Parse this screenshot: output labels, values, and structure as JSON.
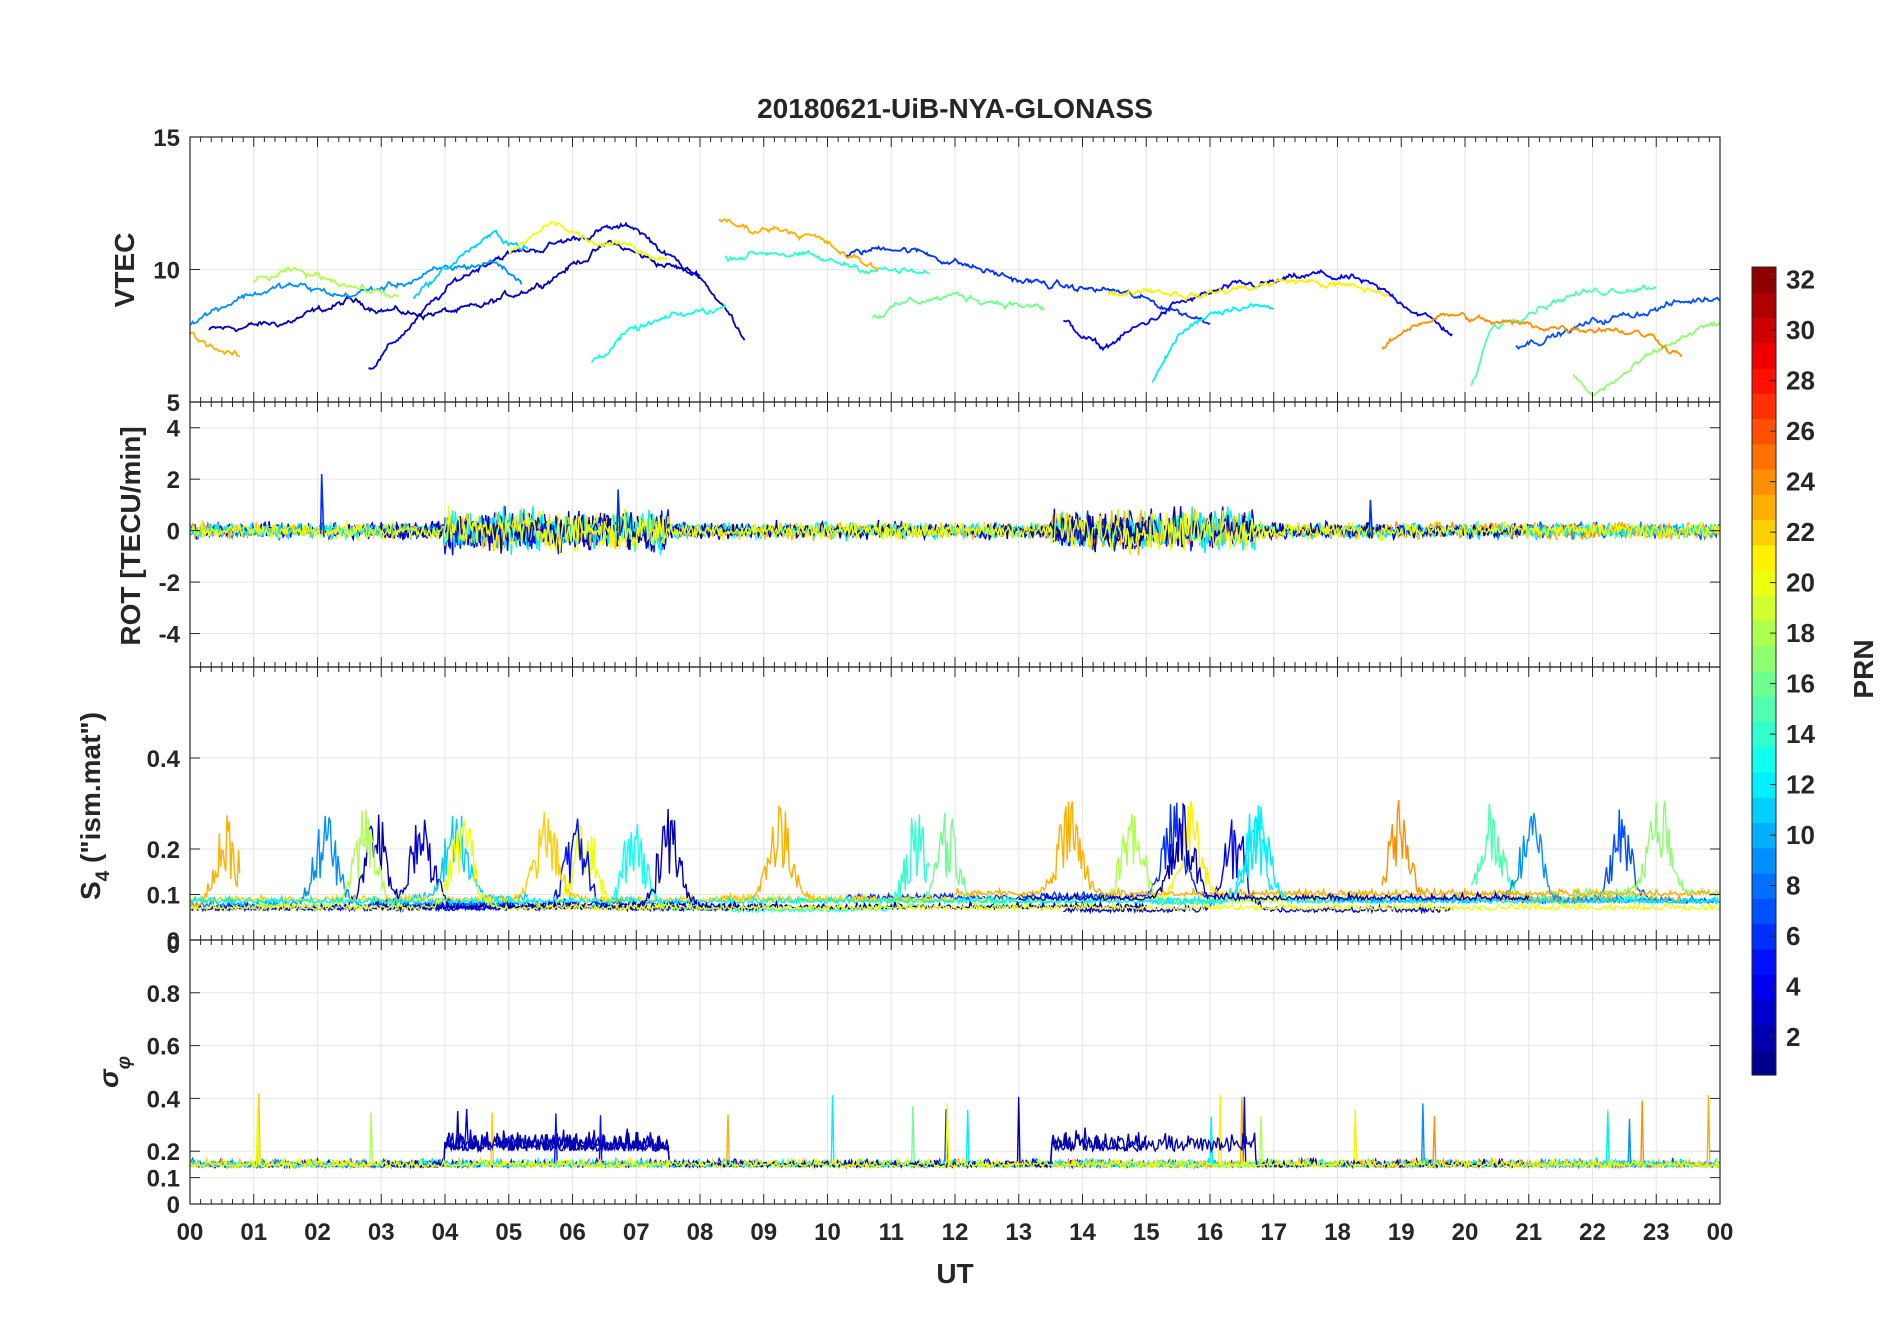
{
  "chart_data": {
    "type": "line",
    "title": "20180621-UiB-NYA-GLONASS",
    "xlabel": "UT",
    "x_tick_labels": [
      "00",
      "01",
      "02",
      "03",
      "04",
      "05",
      "06",
      "07",
      "08",
      "09",
      "10",
      "11",
      "12",
      "13",
      "14",
      "15",
      "16",
      "17",
      "18",
      "19",
      "20",
      "21",
      "22",
      "23",
      "00"
    ],
    "x_range_hours": [
      0,
      24
    ],
    "panels": [
      {
        "id": "vtec",
        "ylabel": "VTEC",
        "ylim": [
          5,
          15
        ],
        "y_ticks": [
          5,
          10,
          15
        ],
        "y_tick_labels": [
          "5",
          "10",
          "15"
        ],
        "grid": true,
        "typical_range": [
          6,
          12
        ]
      },
      {
        "id": "rot",
        "ylabel": "ROT [TECU/min]",
        "ylim": [
          -5.3,
          5
        ],
        "y_ticks": [
          -4,
          -2,
          0,
          2,
          4
        ],
        "y_tick_labels": [
          "-4",
          "-2",
          "0",
          "2",
          "4"
        ],
        "grid": true,
        "typical_range": [
          -0.6,
          0.6
        ],
        "spikes": [
          {
            "x": 2.05,
            "y": 2.2
          },
          {
            "x": 6.7,
            "y": 1.6
          },
          {
            "x": 18.5,
            "y": 1.2
          }
        ]
      },
      {
        "id": "s4",
        "ylabel_main": "S",
        "ylabel_sub": "4",
        "ylabel_rest": " (\"ism.mat\")",
        "ylim": [
          0,
          0.6
        ],
        "y_ticks": [
          0,
          0.1,
          0.2,
          0.4
        ],
        "y_tick_labels": [
          "0",
          "0.1",
          "0.2",
          "0.4"
        ],
        "extra_tick_label": "0",
        "grid": true,
        "typical_range": [
          0.03,
          0.32
        ]
      },
      {
        "id": "sigma_phi",
        "ylabel_main": "σ",
        "ylabel_sub": "φ",
        "ylim": [
          0,
          1
        ],
        "y_ticks": [
          0,
          0.1,
          0.2,
          0.4,
          0.6,
          0.8
        ],
        "y_tick_labels": [
          "0",
          "0.1",
          "0.2",
          "0.4",
          "0.6",
          "0.8"
        ],
        "grid": true,
        "typical_range": [
          0.1,
          0.42
        ]
      }
    ],
    "colorbar": {
      "label": "PRN",
      "colormap": "jet",
      "range": [
        1,
        32
      ],
      "ticks": [
        2,
        4,
        6,
        8,
        10,
        12,
        14,
        16,
        18,
        20,
        22,
        24,
        26,
        28,
        30,
        32
      ],
      "tick_labels": [
        "2",
        "4",
        "6",
        "8",
        "10",
        "12",
        "14",
        "16",
        "18",
        "20",
        "22",
        "24",
        "26",
        "28",
        "30",
        "32"
      ]
    },
    "series": [
      {
        "prn": 2,
        "vtec_knots": [
          [
            0.3,
            7.7
          ],
          [
            1.5,
            8.0
          ],
          [
            2.5,
            8.8
          ],
          [
            3.5,
            8.3
          ],
          [
            4.5,
            8.5
          ],
          [
            5.5,
            9.5
          ],
          [
            6.6,
            11.0
          ],
          [
            7.3,
            10.3
          ],
          [
            8.0,
            9.8
          ],
          [
            8.7,
            7.5
          ]
        ]
      },
      {
        "prn": 3,
        "vtec_knots": [
          [
            2.8,
            6.2
          ],
          [
            3.5,
            8.0
          ],
          [
            4.2,
            9.6
          ],
          [
            4.8,
            10.5
          ],
          [
            5.5,
            10.8
          ],
          [
            6.5,
            11.5
          ],
          [
            7.0,
            11.6
          ],
          [
            7.5,
            10.5
          ],
          [
            8.0,
            9.8
          ]
        ]
      },
      {
        "prn": 4,
        "vtec_knots": [
          [
            13.7,
            8.0
          ],
          [
            14.3,
            7.0
          ],
          [
            15.0,
            8.0
          ],
          [
            15.5,
            8.7
          ],
          [
            16.3,
            9.3
          ],
          [
            17.0,
            9.5
          ],
          [
            17.7,
            9.8
          ],
          [
            18.3,
            9.6
          ],
          [
            19.0,
            8.8
          ],
          [
            19.8,
            7.6
          ]
        ]
      },
      {
        "prn": 6,
        "vtec_knots": [
          [
            10.3,
            10.5
          ],
          [
            11.0,
            10.9
          ],
          [
            11.7,
            10.5
          ],
          [
            12.4,
            10.0
          ],
          [
            13.0,
            9.6
          ],
          [
            13.8,
            9.3
          ],
          [
            14.5,
            9.2
          ],
          [
            15.3,
            8.6
          ],
          [
            16.0,
            8.0
          ]
        ]
      },
      {
        "prn": 7,
        "vtec_knots": [
          [
            20.8,
            7.2
          ],
          [
            21.4,
            7.5
          ],
          [
            22.0,
            8.0
          ],
          [
            22.6,
            8.3
          ],
          [
            23.3,
            8.7
          ],
          [
            24.0,
            9.0
          ]
        ]
      },
      {
        "prn": 9,
        "vtec_knots": [
          [
            0.0,
            8.0
          ],
          [
            0.8,
            9.0
          ],
          [
            1.6,
            9.4
          ],
          [
            2.4,
            9.0
          ],
          [
            3.2,
            9.4
          ],
          [
            4.0,
            10.0
          ],
          [
            4.8,
            10.3
          ],
          [
            5.2,
            9.5
          ]
        ]
      },
      {
        "prn": 11,
        "vtec_knots": [
          [
            3.5,
            9.0
          ],
          [
            4.0,
            10.0
          ],
          [
            4.4,
            10.8
          ],
          [
            4.8,
            11.3
          ],
          [
            5.3,
            10.8
          ]
        ]
      },
      {
        "prn": 12,
        "vtec_knots": [
          [
            15.1,
            5.7
          ],
          [
            15.5,
            7.5
          ],
          [
            16.0,
            8.4
          ],
          [
            16.5,
            8.7
          ],
          [
            17.0,
            8.5
          ]
        ]
      },
      {
        "prn": 13,
        "vtec_knots": [
          [
            6.3,
            6.5
          ],
          [
            6.8,
            7.5
          ],
          [
            7.3,
            8.0
          ],
          [
            7.8,
            8.3
          ],
          [
            8.4,
            8.6
          ]
        ]
      },
      {
        "prn": 14,
        "vtec_knots": [
          [
            8.4,
            10.5
          ],
          [
            9.2,
            10.7
          ],
          [
            10.0,
            10.3
          ],
          [
            10.8,
            10.0
          ],
          [
            11.6,
            9.8
          ]
        ]
      },
      {
        "prn": 15,
        "vtec_knots": [
          [
            20.1,
            5.5
          ],
          [
            20.4,
            7.8
          ],
          [
            21.0,
            8.5
          ],
          [
            21.6,
            9.0
          ],
          [
            22.4,
            9.3
          ],
          [
            23.0,
            9.4
          ]
        ]
      },
      {
        "prn": 16,
        "vtec_knots": [
          [
            10.7,
            8.2
          ],
          [
            11.3,
            8.8
          ],
          [
            12.0,
            9.0
          ],
          [
            12.7,
            8.8
          ],
          [
            13.4,
            8.5
          ]
        ]
      },
      {
        "prn": 17,
        "vtec_knots": [
          [
            21.7,
            6.0
          ],
          [
            22.0,
            5.2
          ],
          [
            22.6,
            6.2
          ],
          [
            23.3,
            7.3
          ],
          [
            24.0,
            8.0
          ]
        ]
      },
      {
        "prn": 18,
        "vtec_knots": [
          [
            1.0,
            9.5
          ],
          [
            1.6,
            9.9
          ],
          [
            2.2,
            9.7
          ],
          [
            2.8,
            9.2
          ],
          [
            3.3,
            9.0
          ]
        ]
      },
      {
        "prn": 20,
        "vtec_knots": [
          [
            5.0,
            10.5
          ],
          [
            5.7,
            11.8
          ],
          [
            6.3,
            11.0
          ],
          [
            7.0,
            10.8
          ],
          [
            7.5,
            10.4
          ]
        ]
      },
      {
        "prn": 21,
        "vtec_knots": [
          [
            14.4,
            9.0
          ],
          [
            15.0,
            9.3
          ],
          [
            15.8,
            9.0
          ],
          [
            16.5,
            9.3
          ],
          [
            17.3,
            9.6
          ],
          [
            18.0,
            9.4
          ],
          [
            18.8,
            9.1
          ]
        ]
      },
      {
        "prn": 23,
        "vtec_knots": [
          [
            8.3,
            11.8
          ],
          [
            8.8,
            11.5
          ],
          [
            9.3,
            11.6
          ],
          [
            9.8,
            11.2
          ],
          [
            10.3,
            10.5
          ],
          [
            10.8,
            10.0
          ]
        ]
      },
      {
        "prn": 23,
        "vtec_knots": [
          [
            0.0,
            7.6
          ],
          [
            0.3,
            7.2
          ],
          [
            0.8,
            6.6
          ]
        ]
      },
      {
        "prn": 24,
        "vtec_knots": [
          [
            18.7,
            7.0
          ],
          [
            19.2,
            8.0
          ],
          [
            19.8,
            8.3
          ],
          [
            20.4,
            8.0
          ],
          [
            21.0,
            7.9
          ],
          [
            21.7,
            7.8
          ],
          [
            22.3,
            7.8
          ],
          [
            22.9,
            7.5
          ],
          [
            23.4,
            6.8
          ]
        ]
      }
    ]
  }
}
